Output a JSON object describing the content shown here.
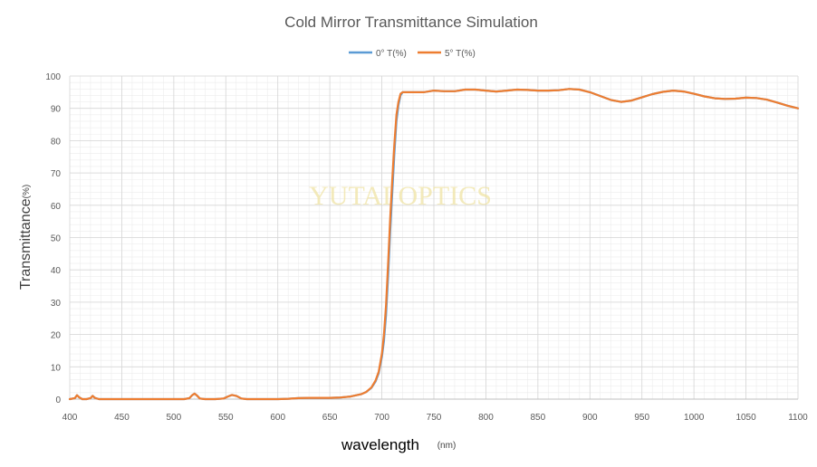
{
  "chart_data": {
    "type": "line",
    "title": "Cold Mirror Transmittance Simulation",
    "xlabel": "wavelength",
    "xlabel_unit": "(nm)",
    "ylabel": "Transmittance",
    "ylabel_unit": "(%)",
    "watermark": "YUTAI OPTICS",
    "xlim": [
      400,
      1100
    ],
    "ylim": [
      0,
      100
    ],
    "x_ticks": [
      "400",
      "450",
      "500",
      "550",
      "600",
      "650",
      "700",
      "750",
      "800",
      "850",
      "900",
      "950",
      "1000",
      "1050",
      "1100"
    ],
    "y_ticks": [
      "0",
      "10",
      "20",
      "30",
      "40",
      "50",
      "60",
      "70",
      "80",
      "90",
      "100"
    ],
    "grid": true,
    "legend_position": "top-center",
    "series": [
      {
        "name": "0° T(%)",
        "color": "#5b9bd5",
        "points": [
          [
            400,
            0
          ],
          [
            405,
            0.3
          ],
          [
            407,
            1.2
          ],
          [
            409,
            0.6
          ],
          [
            412,
            0
          ],
          [
            416,
            0
          ],
          [
            420,
            0.3
          ],
          [
            422,
            1
          ],
          [
            424,
            0.4
          ],
          [
            428,
            0
          ],
          [
            440,
            0
          ],
          [
            450,
            0
          ],
          [
            460,
            0
          ],
          [
            470,
            0
          ],
          [
            480,
            0
          ],
          [
            490,
            0
          ],
          [
            500,
            0
          ],
          [
            510,
            0
          ],
          [
            515,
            0.3
          ],
          [
            518,
            1.3
          ],
          [
            520,
            1.7
          ],
          [
            522,
            1.2
          ],
          [
            525,
            0.2
          ],
          [
            530,
            0
          ],
          [
            540,
            0
          ],
          [
            548,
            0.2
          ],
          [
            552,
            0.8
          ],
          [
            556,
            1.3
          ],
          [
            560,
            1.0
          ],
          [
            565,
            0.2
          ],
          [
            570,
            0
          ],
          [
            580,
            0
          ],
          [
            590,
            0
          ],
          [
            600,
            0
          ],
          [
            610,
            0.1
          ],
          [
            620,
            0.3
          ],
          [
            630,
            0.4
          ],
          [
            640,
            0.4
          ],
          [
            650,
            0.4
          ],
          [
            660,
            0.5
          ],
          [
            670,
            0.8
          ],
          [
            680,
            1.5
          ],
          [
            685,
            2.2
          ],
          [
            690,
            3.5
          ],
          [
            694,
            5.5
          ],
          [
            697,
            8
          ],
          [
            700,
            13
          ],
          [
            702,
            18
          ],
          [
            704,
            26
          ],
          [
            706,
            38
          ],
          [
            708,
            52
          ],
          [
            710,
            64
          ],
          [
            712,
            76
          ],
          [
            714,
            86
          ],
          [
            716,
            91
          ],
          [
            718,
            94
          ],
          [
            720,
            95
          ],
          [
            730,
            95
          ],
          [
            740,
            95
          ],
          [
            750,
            95.5
          ],
          [
            760,
            95.3
          ],
          [
            770,
            95.3
          ],
          [
            780,
            95.8
          ],
          [
            790,
            95.8
          ],
          [
            800,
            95.5
          ],
          [
            810,
            95.2
          ],
          [
            820,
            95.5
          ],
          [
            830,
            95.8
          ],
          [
            840,
            95.7
          ],
          [
            850,
            95.5
          ],
          [
            860,
            95.5
          ],
          [
            870,
            95.6
          ],
          [
            880,
            96
          ],
          [
            890,
            95.8
          ],
          [
            900,
            95
          ],
          [
            910,
            93.8
          ],
          [
            920,
            92.6
          ],
          [
            930,
            92
          ],
          [
            940,
            92.4
          ],
          [
            950,
            93.4
          ],
          [
            960,
            94.4
          ],
          [
            970,
            95.1
          ],
          [
            980,
            95.5
          ],
          [
            990,
            95.2
          ],
          [
            1000,
            94.5
          ],
          [
            1010,
            93.7
          ],
          [
            1020,
            93.1
          ],
          [
            1030,
            92.9
          ],
          [
            1040,
            93
          ],
          [
            1050,
            93.3
          ],
          [
            1060,
            93.2
          ],
          [
            1070,
            92.7
          ],
          [
            1080,
            91.8
          ],
          [
            1090,
            90.8
          ],
          [
            1100,
            90
          ]
        ]
      },
      {
        "name": "5° T(%)",
        "color": "#ed7d31",
        "points": [
          [
            400,
            0
          ],
          [
            405,
            0.3
          ],
          [
            407,
            1.2
          ],
          [
            409,
            0.6
          ],
          [
            412,
            0
          ],
          [
            416,
            0
          ],
          [
            420,
            0.3
          ],
          [
            422,
            1
          ],
          [
            424,
            0.4
          ],
          [
            428,
            0
          ],
          [
            440,
            0
          ],
          [
            450,
            0
          ],
          [
            460,
            0
          ],
          [
            470,
            0
          ],
          [
            480,
            0
          ],
          [
            490,
            0
          ],
          [
            500,
            0
          ],
          [
            510,
            0
          ],
          [
            515,
            0.3
          ],
          [
            518,
            1.3
          ],
          [
            520,
            1.7
          ],
          [
            522,
            1.2
          ],
          [
            525,
            0.2
          ],
          [
            530,
            0
          ],
          [
            540,
            0
          ],
          [
            548,
            0.2
          ],
          [
            552,
            0.8
          ],
          [
            556,
            1.3
          ],
          [
            560,
            1.0
          ],
          [
            565,
            0.2
          ],
          [
            570,
            0
          ],
          [
            580,
            0
          ],
          [
            590,
            0
          ],
          [
            600,
            0
          ],
          [
            610,
            0.1
          ],
          [
            620,
            0.3
          ],
          [
            630,
            0.4
          ],
          [
            640,
            0.4
          ],
          [
            650,
            0.4
          ],
          [
            660,
            0.5
          ],
          [
            670,
            0.8
          ],
          [
            680,
            1.5
          ],
          [
            685,
            2.2
          ],
          [
            690,
            3.6
          ],
          [
            694,
            5.8
          ],
          [
            697,
            8.5
          ],
          [
            700,
            14
          ],
          [
            702,
            20
          ],
          [
            704,
            29
          ],
          [
            706,
            42
          ],
          [
            708,
            56
          ],
          [
            710,
            68
          ],
          [
            712,
            79
          ],
          [
            714,
            88
          ],
          [
            716,
            92
          ],
          [
            718,
            94.5
          ],
          [
            720,
            95
          ],
          [
            730,
            95
          ],
          [
            740,
            95
          ],
          [
            750,
            95.5
          ],
          [
            760,
            95.3
          ],
          [
            770,
            95.3
          ],
          [
            780,
            95.8
          ],
          [
            790,
            95.8
          ],
          [
            800,
            95.5
          ],
          [
            810,
            95.2
          ],
          [
            820,
            95.5
          ],
          [
            830,
            95.8
          ],
          [
            840,
            95.7
          ],
          [
            850,
            95.5
          ],
          [
            860,
            95.5
          ],
          [
            870,
            95.6
          ],
          [
            880,
            96
          ],
          [
            890,
            95.8
          ],
          [
            900,
            95
          ],
          [
            910,
            93.8
          ],
          [
            920,
            92.6
          ],
          [
            930,
            92
          ],
          [
            940,
            92.4
          ],
          [
            950,
            93.4
          ],
          [
            960,
            94.4
          ],
          [
            970,
            95.1
          ],
          [
            980,
            95.5
          ],
          [
            990,
            95.2
          ],
          [
            1000,
            94.5
          ],
          [
            1010,
            93.7
          ],
          [
            1020,
            93.1
          ],
          [
            1030,
            92.9
          ],
          [
            1040,
            93
          ],
          [
            1050,
            93.3
          ],
          [
            1060,
            93.2
          ],
          [
            1070,
            92.7
          ],
          [
            1080,
            91.8
          ],
          [
            1090,
            90.8
          ],
          [
            1100,
            90
          ]
        ]
      }
    ]
  }
}
